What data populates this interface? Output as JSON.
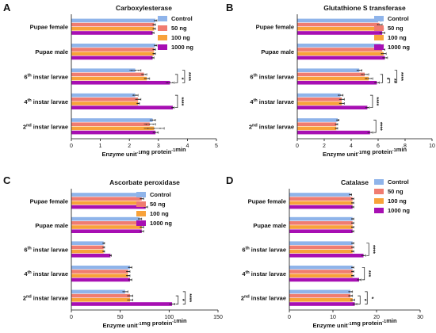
{
  "panels": [
    {
      "letter": "A",
      "title": "Carboxylesterase",
      "xlabel": "Enzyme unit-1mg protein-1min"
    },
    {
      "letter": "B",
      "title": "Glutathione S transferase",
      "xlabel": "Enzyme unit-1mg protein-1min"
    },
    {
      "letter": "C",
      "title": "Ascorbate peroxidase",
      "xlabel": "Enzyme unit-1mg protein-1min"
    },
    {
      "letter": "D",
      "title": "Catalase",
      "xlabel": "Enzyme unit-1mg protein-1min"
    }
  ],
  "legend": {
    "entries": [
      {
        "label": "Control",
        "color": "#8fb4ea"
      },
      {
        "label": "50 ng",
        "color": "#f07c70"
      },
      {
        "label": "100 ng",
        "color": "#f8a23a"
      },
      {
        "label": "1000 ng",
        "color": "#a70fb3"
      }
    ],
    "placement": "right"
  },
  "chart_data": [
    {
      "type": "bar",
      "orientation": "horizontal",
      "title": "Carboxylesterase",
      "xlabel": "Enzyme unit-1mg protein-1min",
      "xlim": [
        0,
        5
      ],
      "xticks": [
        0,
        1,
        2,
        3,
        4,
        5
      ],
      "categories": [
        "Pupae female",
        "Pupae male",
        "6th instar larvae",
        "4th instar larvae",
        "2nd instar larvae"
      ],
      "series": [
        {
          "name": "Control",
          "values": [
            2.9,
            2.9,
            2.2,
            2.2,
            2.8
          ]
        },
        {
          "name": "50 ng",
          "values": [
            2.85,
            2.85,
            2.5,
            2.3,
            2.7
          ]
        },
        {
          "name": "100 ng",
          "values": [
            2.85,
            2.85,
            2.6,
            2.3,
            2.85
          ]
        },
        {
          "name": "1000 ng",
          "values": [
            2.8,
            2.8,
            3.4,
            3.5,
            2.9
          ]
        }
      ],
      "errors": [
        [
          0.05,
          0.05,
          0.2,
          0.1,
          0.1
        ],
        [
          0.05,
          0.05,
          0.1,
          0.1,
          0.2
        ],
        [
          0.05,
          0.05,
          0.1,
          0.05,
          0.35
        ],
        [
          0.05,
          0.05,
          0.15,
          0.05,
          0.1
        ]
      ],
      "significance": [
        {
          "category": "6th instar larvae",
          "marks": [
            "*",
            "****"
          ]
        },
        {
          "category": "4th instar larvae",
          "marks": [
            "****"
          ]
        }
      ]
    },
    {
      "type": "bar",
      "orientation": "horizontal",
      "title": "Glutathione S transferase",
      "xlabel": "Enzyme unit-1mg protein-1min",
      "xlim": [
        0,
        10
      ],
      "xticks": [
        0,
        2,
        4,
        6,
        8,
        10
      ],
      "categories": [
        "Pupae female",
        "Pupae male",
        "6th instar larvae",
        "4th instar larvae",
        "2nd instar larvae"
      ],
      "series": [
        {
          "name": "Control",
          "values": [
            6.0,
            6.2,
            4.6,
            3.2,
            3.0
          ]
        },
        {
          "name": "50 ng",
          "values": [
            6.1,
            6.3,
            5.0,
            3.3,
            2.9
          ]
        },
        {
          "name": "100 ng",
          "values": [
            6.2,
            6.4,
            5.3,
            3.3,
            2.9
          ]
        },
        {
          "name": "1000 ng",
          "values": [
            6.3,
            6.5,
            5.9,
            5.2,
            5.4
          ]
        }
      ],
      "errors": [
        [
          0.2,
          0.2,
          0.2,
          0.2,
          0.1
        ],
        [
          0.2,
          0.2,
          0.3,
          0.2,
          0.1
        ],
        [
          0.2,
          0.2,
          0.3,
          0.2,
          0.1
        ],
        [
          0.2,
          0.2,
          0.2,
          0.15,
          0.2
        ]
      ],
      "significance": [
        {
          "category": "6th instar larvae",
          "marks": [
            "*",
            "**",
            "****"
          ]
        },
        {
          "category": "4th instar larvae",
          "marks": [
            "****"
          ]
        },
        {
          "category": "2nd instar larvae",
          "marks": [
            "****"
          ]
        }
      ]
    },
    {
      "type": "bar",
      "orientation": "horizontal",
      "title": "Ascorbate peroxidase",
      "xlabel": "Enzyme unit-1mg protein-1min",
      "xlim": [
        0,
        150
      ],
      "xticks": [
        0,
        50,
        100,
        150
      ],
      "categories": [
        "Pupae female",
        "Pupae male",
        "6th instar larvae",
        "4th instar larvae",
        "2nd instar larvae"
      ],
      "series": [
        {
          "name": "Control",
          "values": [
            72,
            70,
            33,
            60,
            55
          ]
        },
        {
          "name": "50 ng",
          "values": [
            72,
            70,
            33,
            58,
            60
          ]
        },
        {
          "name": "100 ng",
          "values": [
            70,
            72,
            33,
            58,
            60
          ]
        },
        {
          "name": "1000 ng",
          "values": [
            76,
            72,
            40,
            60,
            103
          ]
        }
      ],
      "errors": [
        [
          2,
          2,
          1,
          2,
          3
        ],
        [
          2,
          2,
          1,
          2,
          3
        ],
        [
          3,
          2,
          1,
          2,
          3
        ],
        [
          2,
          2,
          1,
          2,
          3
        ]
      ],
      "significance": [
        {
          "category": "2nd instar larvae",
          "marks": [
            "*",
            "****"
          ]
        }
      ]
    },
    {
      "type": "bar",
      "orientation": "horizontal",
      "title": "Catalase",
      "xlabel": "Enzyme unit-1mg protein-1min",
      "xlim": [
        0,
        30
      ],
      "xticks": [
        0,
        10,
        20,
        30
      ],
      "categories": [
        "Pupae female",
        "Pupae male",
        "6th instar larvae",
        "4th instar larvae",
        "2nd instar larvae"
      ],
      "series": [
        {
          "name": "Control",
          "values": [
            14,
            14.5,
            14.5,
            14.5,
            14
          ]
        },
        {
          "name": "50 ng",
          "values": [
            14.5,
            14.5,
            14.5,
            14.5,
            14
          ]
        },
        {
          "name": "100 ng",
          "values": [
            14.5,
            14.5,
            14.5,
            14.5,
            14.5
          ]
        },
        {
          "name": "1000 ng",
          "values": [
            14.5,
            14.5,
            17,
            16,
            15
          ]
        }
      ],
      "errors": [
        [
          0.3,
          0.3,
          0.3,
          0.3,
          0.5
        ],
        [
          0.3,
          0.3,
          0.3,
          0.3,
          0.5
        ],
        [
          0.3,
          0.3,
          0.3,
          0.3,
          0.5
        ],
        [
          0.3,
          0.3,
          0.5,
          0.5,
          0.5
        ]
      ],
      "significance": [
        {
          "category": "6th instar larvae",
          "marks": [
            "****"
          ]
        },
        {
          "category": "4th instar larvae",
          "marks": [
            "***"
          ]
        },
        {
          "category": "2nd instar larvae",
          "marks": [
            "*",
            "*"
          ]
        }
      ]
    }
  ]
}
